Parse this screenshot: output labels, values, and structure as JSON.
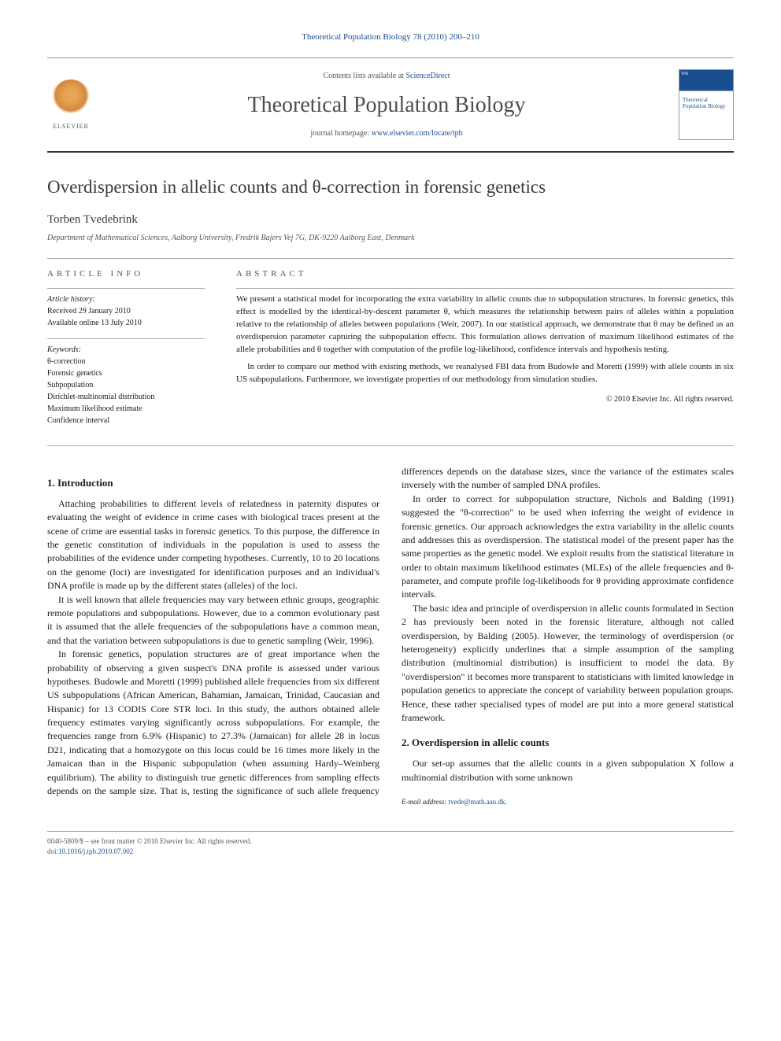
{
  "header": {
    "citation": "Theoretical Population Biology 78 (2010) 200–210",
    "contents_prefix": "Contents lists available at ",
    "contents_link": "ScienceDirect",
    "journal_title": "Theoretical Population Biology",
    "homepage_prefix": "journal homepage: ",
    "homepage_url": "www.elsevier.com/locate/tpb",
    "publisher": "ELSEVIER",
    "cover_journal": "Theoretical Population Biology"
  },
  "article": {
    "title": "Overdispersion in allelic counts and θ-correction in forensic genetics",
    "author": "Torben Tvedebrink",
    "affiliation": "Department of Mathematical Sciences, Aalborg University, Fredrik Bajers Vej 7G, DK-9220 Aalborg East, Denmark"
  },
  "info": {
    "heading": "ARTICLE INFO",
    "history_label": "Article history:",
    "received": "Received 29 January 2010",
    "available": "Available online 13 July 2010",
    "keywords_label": "Keywords:",
    "keywords": [
      "θ-correction",
      "Forensic genetics",
      "Subpopulation",
      "Dirichlet-multinomial distribution",
      "Maximum likelihood estimate",
      "Confidence interval"
    ]
  },
  "abstract": {
    "heading": "ABSTRACT",
    "p1": "We present a statistical model for incorporating the extra variability in allelic counts due to subpopulation structures. In forensic genetics, this effect is modelled by the identical-by-descent parameter θ, which measures the relationship between pairs of alleles within a population relative to the relationship of alleles between populations (Weir, 2007). In our statistical approach, we demonstrate that θ may be defined as an overdispersion parameter capturing the subpopulation effects. This formulation allows derivation of maximum likelihood estimates of the allele probabilities and θ together with computation of the profile log-likelihood, confidence intervals and hypothesis testing.",
    "p2": "In order to compare our method with existing methods, we reanalysed FBI data from Budowle and Moretti (1999) with allele counts in six US subpopulations. Furthermore, we investigate properties of our methodology from simulation studies.",
    "copyright": "© 2010 Elsevier Inc. All rights reserved."
  },
  "body": {
    "s1_title": "1. Introduction",
    "s1_p1": "Attaching probabilities to different levels of relatedness in paternity disputes or evaluating the weight of evidence in crime cases with biological traces present at the scene of crime are essential tasks in forensic genetics. To this purpose, the difference in the genetic constitution of individuals in the population is used to assess the probabilities of the evidence under competing hypotheses. Currently, 10 to 20 locations on the genome (loci) are investigated for identification purposes and an individual's DNA profile is made up by the different states (alleles) of the loci.",
    "s1_p2": "It is well known that allele frequencies may vary between ethnic groups, geographic remote populations and subpopulations. However, due to a common evolutionary past it is assumed that the allele frequencies of the subpopulations have a common mean, and that the variation between subpopulations is due to genetic sampling (Weir, 1996).",
    "s1_p3": "In forensic genetics, population structures are of great importance when the probability of observing a given suspect's DNA profile is assessed under various hypotheses. Budowle and Moretti (1999) published allele frequencies from six different US subpopulations (African American, Bahamian, Jamaican, Trinidad, Caucasian and Hispanic) for 13 CODIS Core STR loci. In this study, the authors obtained allele frequency estimates varying significantly across subpopulations. For example, the frequencies range from 6.9% (Hispanic) to 27.3% (Jamaican) for allele 28 in locus D21, indicating that a homozygote on this locus could be 16 times more likely in the Jamaican than in the Hispanic subpopulation (when assuming Hardy–Weinberg equilibrium). The ability to distinguish true genetic differences from sampling effects depends on the sample size. That is, testing the significance of such allele frequency differences depends on the database sizes, since the variance of the estimates scales inversely with the number of sampled DNA profiles.",
    "s1_p4": "In order to correct for subpopulation structure, Nichols and Balding (1991) suggested the \"θ-correction\" to be used when inferring the weight of evidence in forensic genetics. Our approach acknowledges the extra variability in the allelic counts and addresses this as overdispersion. The statistical model of the present paper has the same properties as the genetic model. We exploit results from the statistical literature in order to obtain maximum likelihood estimates (MLEs) of the allele frequencies and θ-parameter, and compute profile log-likelihoods for θ providing approximate confidence intervals.",
    "s1_p5": "The basic idea and principle of overdispersion in allelic counts formulated in Section 2 has previously been noted in the forensic literature, although not called overdispersion, by Balding (2005). However, the terminology of overdispersion (or heterogeneity) explicitly underlines that a simple assumption of the sampling distribution (multinomial distribution) is insufficient to model the data. By \"overdispersion\" it becomes more transparent to statisticians with limited knowledge in population genetics to appreciate the concept of variability between population groups. Hence, these rather specialised types of model are put into a more general statistical framework.",
    "s2_title": "2. Overdispersion in allelic counts",
    "s2_p1": "Our set-up assumes that the allelic counts in a given subpopulation X follow a multinomial distribution with some unknown"
  },
  "footer": {
    "email_label": "E-mail address: ",
    "email": "tvede@math.aau.dk",
    "issn": "0040-5809/$ – see front matter © 2010 Elsevier Inc. All rights reserved.",
    "doi_label": "doi:",
    "doi": "10.1016/j.tpb.2010.07.002"
  },
  "colors": {
    "link": "#1a4d8f",
    "text": "#1a1a1a",
    "muted": "#555555",
    "rule": "#999999"
  }
}
